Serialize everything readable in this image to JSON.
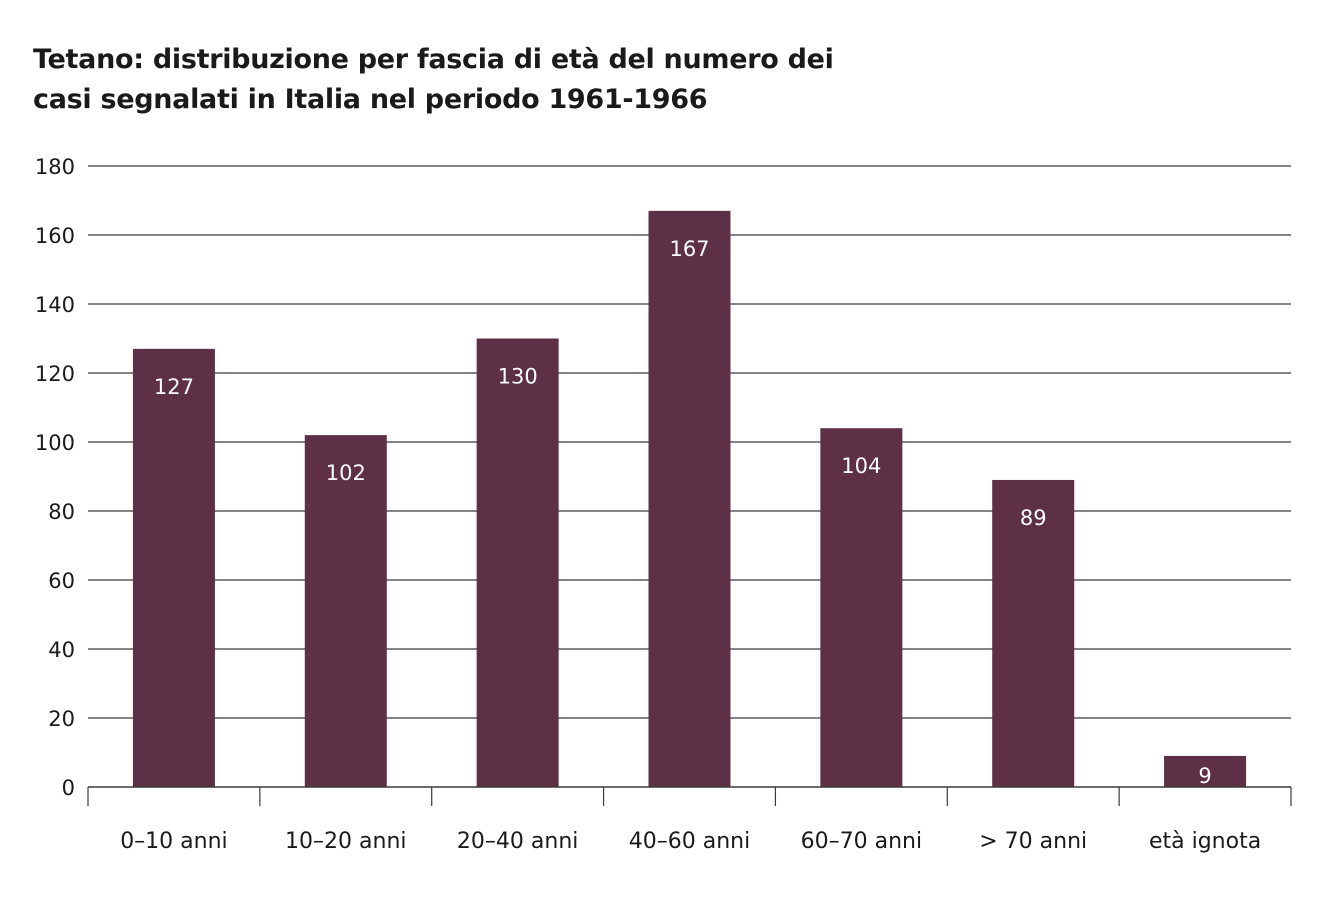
{
  "title_lines": [
    "Tetano: distribuzione per fascia di età del numero dei",
    "casi segnalati in Italia nel periodo 1961-1966"
  ],
  "chart_data": {
    "type": "bar",
    "title": "Tetano: distribuzione per fascia di età del numero dei casi segnalati in Italia nel periodo 1961-1966",
    "categories": [
      "0–10 anni",
      "10–20 anni",
      "20–40 anni",
      "40–60 anni",
      "60–70 anni",
      "> 70 anni",
      "età ignota"
    ],
    "values": [
      127,
      102,
      130,
      167,
      104,
      89,
      9
    ],
    "value_labels": [
      "127",
      "102",
      "130",
      "167",
      "104",
      "89",
      "9"
    ],
    "ylim": [
      0,
      180
    ],
    "yticks": [
      0,
      20,
      40,
      60,
      80,
      100,
      120,
      140,
      160,
      180
    ],
    "grid": true,
    "legend": "none",
    "bar_color": "#5e3045",
    "grid_color": "#3a3a3a"
  }
}
